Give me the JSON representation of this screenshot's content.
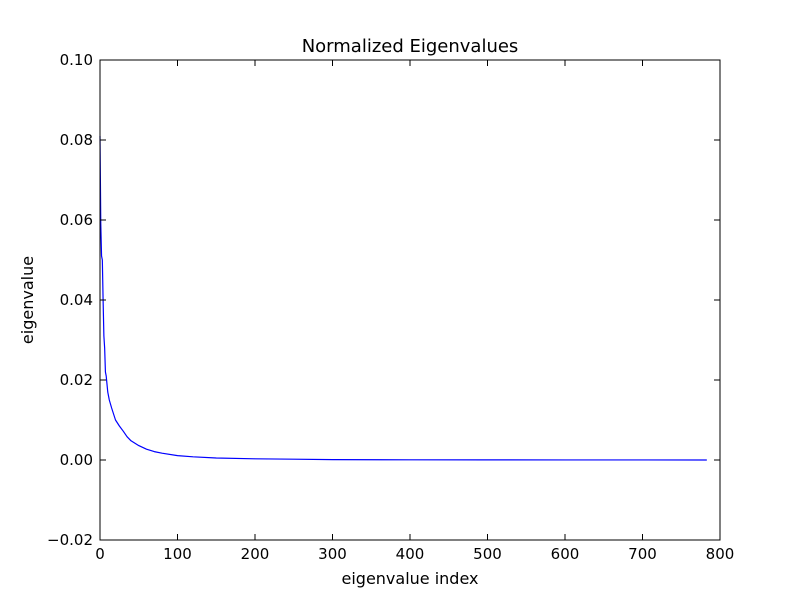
{
  "chart_data": {
    "type": "line",
    "title": "Normalized Eigenvalues",
    "xlabel": "eigenvalue index",
    "ylabel": "eigenvalue",
    "xlim": [
      0,
      800
    ],
    "ylim": [
      -0.02,
      0.1
    ],
    "x_ticks": [
      0,
      100,
      200,
      300,
      400,
      500,
      600,
      700,
      800
    ],
    "y_ticks": [
      -0.02,
      0.0,
      0.02,
      0.04,
      0.06,
      0.08,
      0.1
    ],
    "x_tick_labels": [
      "0",
      "100",
      "200",
      "300",
      "400",
      "500",
      "600",
      "700",
      "800"
    ],
    "y_tick_labels": [
      "−0.02",
      "0.00",
      "0.02",
      "0.04",
      "0.06",
      "0.08",
      "0.10"
    ],
    "grid": false,
    "series": [
      {
        "color": "#0000ff",
        "x": [
          0,
          1,
          2,
          3,
          4,
          5,
          6,
          7,
          8,
          10,
          12,
          15,
          20,
          25,
          30,
          35,
          40,
          50,
          60,
          70,
          80,
          100,
          120,
          150,
          200,
          250,
          300,
          400,
          500,
          600,
          700,
          783
        ],
        "y": [
          0.081,
          0.059,
          0.051,
          0.05,
          0.04,
          0.031,
          0.028,
          0.022,
          0.021,
          0.017,
          0.015,
          0.013,
          0.01,
          0.0085,
          0.0072,
          0.0058,
          0.0048,
          0.0036,
          0.0027,
          0.0021,
          0.0017,
          0.0011,
          0.0008,
          0.0005,
          0.0003,
          0.0002,
          0.0001,
          5e-05,
          3e-05,
          2e-05,
          1e-05,
          0.0
        ]
      }
    ]
  }
}
